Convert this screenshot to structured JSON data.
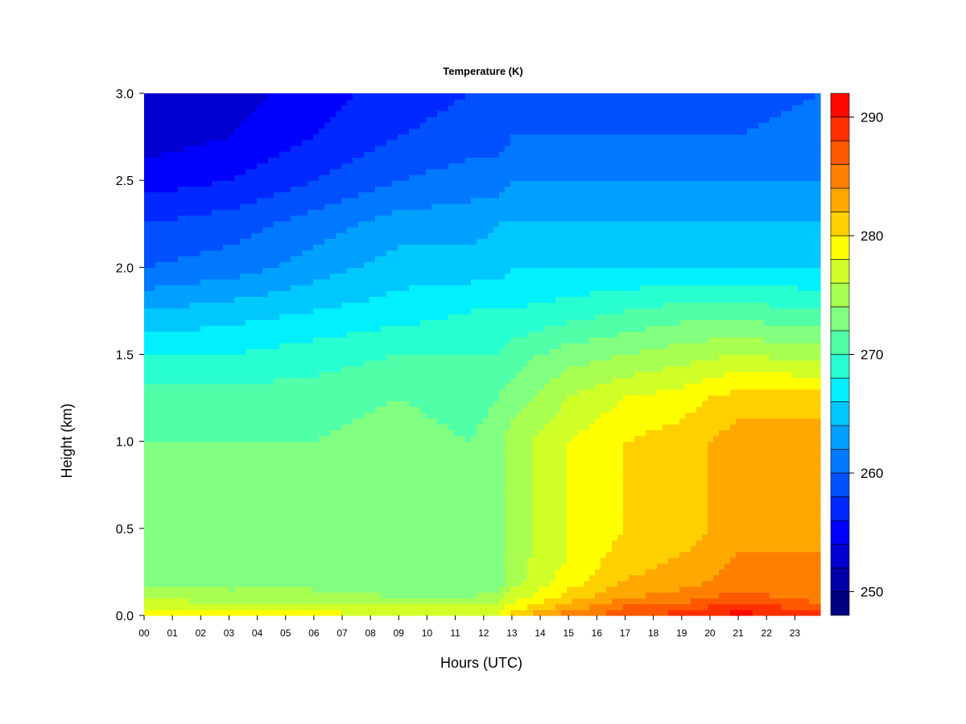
{
  "chart_data": {
    "type": "heatmap",
    "title": "Temperature (K)",
    "xlabel": "Hours (UTC)",
    "ylabel": "Height (km)",
    "x_ticks": [
      "00",
      "01",
      "02",
      "03",
      "04",
      "05",
      "06",
      "07",
      "08",
      "09",
      "10",
      "11",
      "12",
      "13",
      "14",
      "15",
      "16",
      "17",
      "18",
      "19",
      "20",
      "21",
      "22",
      "23"
    ],
    "y_ticks": [
      "0.0",
      "0.5",
      "1.0",
      "1.5",
      "2.0",
      "2.5",
      "3.0"
    ],
    "xlim": [
      0,
      23.9
    ],
    "ylim": [
      0,
      3.0
    ],
    "colorbar": {
      "range": [
        248,
        292
      ],
      "ticks": [
        250,
        260,
        270,
        280,
        290
      ],
      "tick_labels": [
        "250",
        "260",
        "270",
        "280",
        "290"
      ],
      "levels_step": 2,
      "colors": [
        "#000080",
        "#0000A8",
        "#0000D0",
        "#0000FF",
        "#0028FF",
        "#0050FF",
        "#0078FF",
        "#00A0FF",
        "#00C8FF",
        "#00F0FF",
        "#28FFD0",
        "#50FFA8",
        "#80FF80",
        "#A8FF50",
        "#D0FF28",
        "#FFFF00",
        "#FFD000",
        "#FFA800",
        "#FF8000",
        "#FF5800",
        "#FF3000",
        "#FF0800",
        "#D80000",
        "#B00000",
        "#800000"
      ]
    },
    "x_hours": [
      0,
      3,
      6,
      9,
      11.5,
      12.5,
      13,
      15,
      17,
      19,
      21,
      23.9
    ],
    "heights_km": [
      0.0,
      0.05,
      0.1,
      0.2,
      0.35,
      0.5,
      0.75,
      1.0,
      1.25,
      1.5,
      1.75,
      2.0,
      2.25,
      2.5,
      2.75,
      3.0
    ],
    "temperature_K": [
      [
        279,
        279,
        279,
        278,
        277,
        278,
        281,
        285,
        287,
        289,
        291,
        289
      ],
      [
        277,
        277,
        277,
        276,
        276,
        277,
        279,
        283,
        286,
        287,
        289,
        287
      ],
      [
        276,
        275,
        275,
        274,
        274,
        275,
        277,
        281,
        284,
        285,
        287,
        285
      ],
      [
        273,
        273,
        273,
        273,
        272,
        273,
        275,
        279,
        282,
        283,
        285,
        284
      ],
      [
        273,
        273,
        273,
        274,
        272,
        273,
        275,
        278,
        281,
        282,
        284,
        284
      ],
      [
        273,
        273,
        273,
        274,
        272,
        273,
        275,
        278,
        280,
        281,
        283,
        284
      ],
      [
        273,
        273,
        273,
        274,
        272,
        273,
        275,
        278,
        280,
        281,
        283,
        284
      ],
      [
        272,
        272,
        272,
        273,
        272,
        273,
        275,
        278,
        280,
        281,
        283,
        283
      ],
      [
        271,
        271,
        271,
        272,
        271,
        272,
        273,
        276,
        278,
        279,
        281,
        281
      ],
      [
        268,
        268,
        269,
        270,
        270,
        270,
        271,
        273,
        274,
        275,
        276,
        275
      ],
      [
        264,
        265,
        266,
        267,
        268,
        268,
        268,
        269,
        270,
        271,
        271,
        270
      ],
      [
        260,
        261,
        263,
        265,
        265,
        265,
        266,
        266,
        266,
        266,
        266,
        266
      ],
      [
        258,
        259,
        261,
        263,
        263,
        264,
        264,
        264,
        264,
        264,
        264,
        264
      ],
      [
        255,
        256,
        258,
        260,
        261,
        261,
        262,
        262,
        262,
        262,
        262,
        262
      ],
      [
        253,
        254,
        256,
        258,
        259,
        259,
        260,
        260,
        260,
        260,
        260,
        261
      ],
      [
        252,
        253,
        255,
        257,
        258,
        258,
        258,
        258,
        258,
        258,
        259,
        260
      ]
    ],
    "grid": false
  }
}
